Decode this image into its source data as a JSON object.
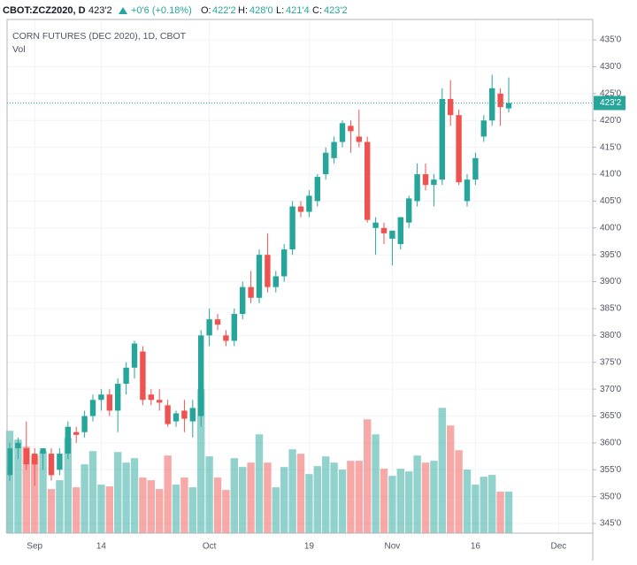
{
  "header": {
    "symbol": "CBOT:ZCZ2020, D",
    "last": "423'2",
    "change": "+0'6 (+0.18%)",
    "open_prefix": "O:",
    "open": "422'2",
    "high_prefix": "H:",
    "high": "428'0",
    "low_prefix": "L:",
    "low": "421'4",
    "close_prefix": "C:",
    "close": "423'2"
  },
  "chart_data": {
    "type": "candlestick",
    "title": "CORN FUTURES (DEC 2020), 1D, CBOT",
    "volume_label": "Vol",
    "up_color": "#26a69a",
    "down_color": "#ef5350",
    "grid": true,
    "categories": [
      null,
      null,
      null,
      "Sep",
      null,
      null,
      null,
      null,
      null,
      null,
      null,
      "14",
      null,
      null,
      null,
      null,
      null,
      null,
      null,
      null,
      null,
      null,
      null,
      null,
      "Oct",
      null,
      null,
      null,
      null,
      null,
      null,
      null,
      null,
      null,
      null,
      null,
      "19",
      null,
      null,
      null,
      null,
      null,
      null,
      null,
      null,
      null,
      "Nov",
      null,
      null,
      null,
      null,
      null,
      null,
      null,
      null,
      null,
      "16",
      null,
      null,
      null,
      null,
      null,
      null,
      null,
      null,
      null,
      "Dec"
    ],
    "open": [
      354,
      359,
      359,
      358,
      358,
      358,
      355,
      358,
      362,
      362,
      365,
      368,
      369,
      366,
      371,
      374,
      377,
      369,
      368,
      367,
      364,
      366,
      364,
      365,
      380,
      383,
      380,
      379,
      384,
      389,
      387,
      395,
      389,
      391,
      396,
      404,
      403,
      405,
      410,
      413,
      416,
      419,
      417,
      416,
      400,
      400,
      398,
      397,
      401,
      405,
      410,
      408,
      409,
      424,
      421,
      405,
      409,
      417,
      420,
      425,
      422.25,
      null,
      null,
      null,
      null,
      null,
      null
    ],
    "high": [
      360,
      361,
      364,
      359,
      359,
      359,
      359,
      364,
      363,
      366,
      369,
      370,
      370,
      372,
      375,
      379,
      378,
      370,
      370,
      368,
      366,
      368,
      368,
      381,
      385,
      384,
      381,
      385,
      390,
      392,
      396,
      399,
      392,
      397,
      405,
      405,
      407,
      410,
      415,
      417,
      420,
      420,
      422,
      417,
      402,
      401,
      399,
      402,
      406,
      412,
      412,
      410,
      426,
      427.5,
      422,
      410,
      414,
      421,
      428.5,
      426,
      428,
      null,
      null,
      null,
      null,
      null,
      null
    ],
    "low": [
      353,
      357,
      355,
      352,
      355,
      353,
      354,
      357,
      360,
      361,
      364,
      366,
      365,
      362,
      369,
      372,
      367,
      367,
      366,
      363,
      363,
      362,
      361,
      363,
      378,
      381,
      378,
      378,
      383,
      386,
      386,
      388,
      388,
      390,
      395,
      402,
      402,
      404,
      409,
      412,
      415,
      414,
      415,
      401,
      395,
      397,
      393,
      396,
      400,
      404,
      407,
      404,
      408,
      419,
      408,
      404,
      408,
      416,
      419,
      419,
      421.5,
      null,
      null,
      null,
      null,
      null,
      null
    ],
    "close": [
      359,
      360,
      356,
      356,
      359,
      354,
      358,
      363,
      361.5,
      365,
      368,
      369,
      366,
      371,
      374,
      378.5,
      368,
      368,
      367.5,
      363.5,
      365.5,
      364.5,
      366.5,
      380,
      383,
      382,
      379,
      384,
      389,
      387,
      395,
      389,
      391,
      396,
      404,
      403,
      406,
      409.5,
      414,
      416,
      419.5,
      418,
      416,
      401.5,
      401,
      399,
      399.5,
      402,
      405.5,
      410,
      408,
      409,
      424,
      421,
      408.5,
      409,
      413,
      420,
      426,
      422.5,
      423.25,
      null,
      null,
      null,
      null,
      null,
      null
    ],
    "volume": [
      116,
      106,
      98,
      88,
      93,
      50,
      60,
      108,
      52,
      78,
      93,
      55,
      53,
      92,
      80,
      85,
      63,
      60,
      50,
      88,
      55,
      63,
      52,
      163,
      87,
      63,
      49,
      85,
      75,
      80,
      112,
      80,
      52,
      75,
      95,
      90,
      67,
      76,
      87,
      80,
      72,
      82,
      82,
      129,
      112,
      73,
      65,
      73,
      70,
      88,
      80,
      82,
      142,
      122,
      94,
      72,
      55,
      64,
      66,
      47,
      47,
      null,
      null,
      null,
      null,
      null,
      null
    ],
    "ylim": [
      343.2,
      438.8
    ],
    "yticks": [
      {
        "value": 345,
        "label": "345'0"
      },
      {
        "value": 350,
        "label": "350'0"
      },
      {
        "value": 355,
        "label": "355'0"
      },
      {
        "value": 360,
        "label": "360'0"
      },
      {
        "value": 365,
        "label": "365'0"
      },
      {
        "value": 370,
        "label": "370'0"
      },
      {
        "value": 375,
        "label": "375'0"
      },
      {
        "value": 380,
        "label": "380'0"
      },
      {
        "value": 385,
        "label": "385'0"
      },
      {
        "value": 390,
        "label": "390'0"
      },
      {
        "value": 395,
        "label": "395'0"
      },
      {
        "value": 400,
        "label": "400'0"
      },
      {
        "value": 405,
        "label": "405'0"
      },
      {
        "value": 410,
        "label": "410'0"
      },
      {
        "value": 415,
        "label": "415'0"
      },
      {
        "value": 420,
        "label": "420'0"
      },
      {
        "value": 425,
        "label": "425'0"
      },
      {
        "value": 430,
        "label": "430'0"
      },
      {
        "value": 435,
        "label": "435'0"
      }
    ],
    "last_price": {
      "value": 423.25,
      "label": "423'2"
    }
  }
}
